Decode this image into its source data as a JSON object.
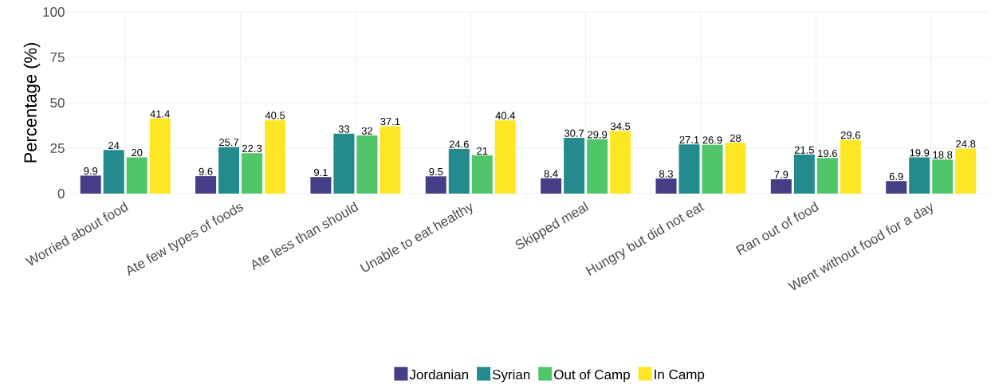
{
  "chart_data": {
    "type": "bar",
    "ylabel": "Percentage (%)",
    "categories": [
      "Worried about food",
      "Ate few types of foods",
      "Ate less than should",
      "Unable to eat healthy",
      "Skipped meal",
      "Hungry but did not eat",
      "Ran out of food",
      "Went without food for a day"
    ],
    "series": [
      {
        "name": "Jordanian",
        "color": "#433e85",
        "values": [
          9.9,
          9.6,
          9.1,
          9.5,
          8.4,
          8.3,
          7.9,
          6.9
        ]
      },
      {
        "name": "Syrian",
        "color": "#238a8d",
        "values": [
          24,
          25.7,
          33,
          24.6,
          30.7,
          27.1,
          21.5,
          19.9
        ]
      },
      {
        "name": "Out of Camp",
        "color": "#51c56a",
        "values": [
          20,
          22.3,
          32,
          21,
          29.9,
          26.9,
          19.6,
          18.8
        ]
      },
      {
        "name": "In Camp",
        "color": "#fde725",
        "values": [
          41.4,
          40.5,
          37.1,
          40.4,
          34.5,
          28,
          29.6,
          24.8
        ]
      }
    ],
    "ylim": [
      0,
      100
    ],
    "yticks": [
      0,
      25,
      50,
      75,
      100
    ],
    "grid": true,
    "legend": "bottom",
    "data_labels": true
  }
}
